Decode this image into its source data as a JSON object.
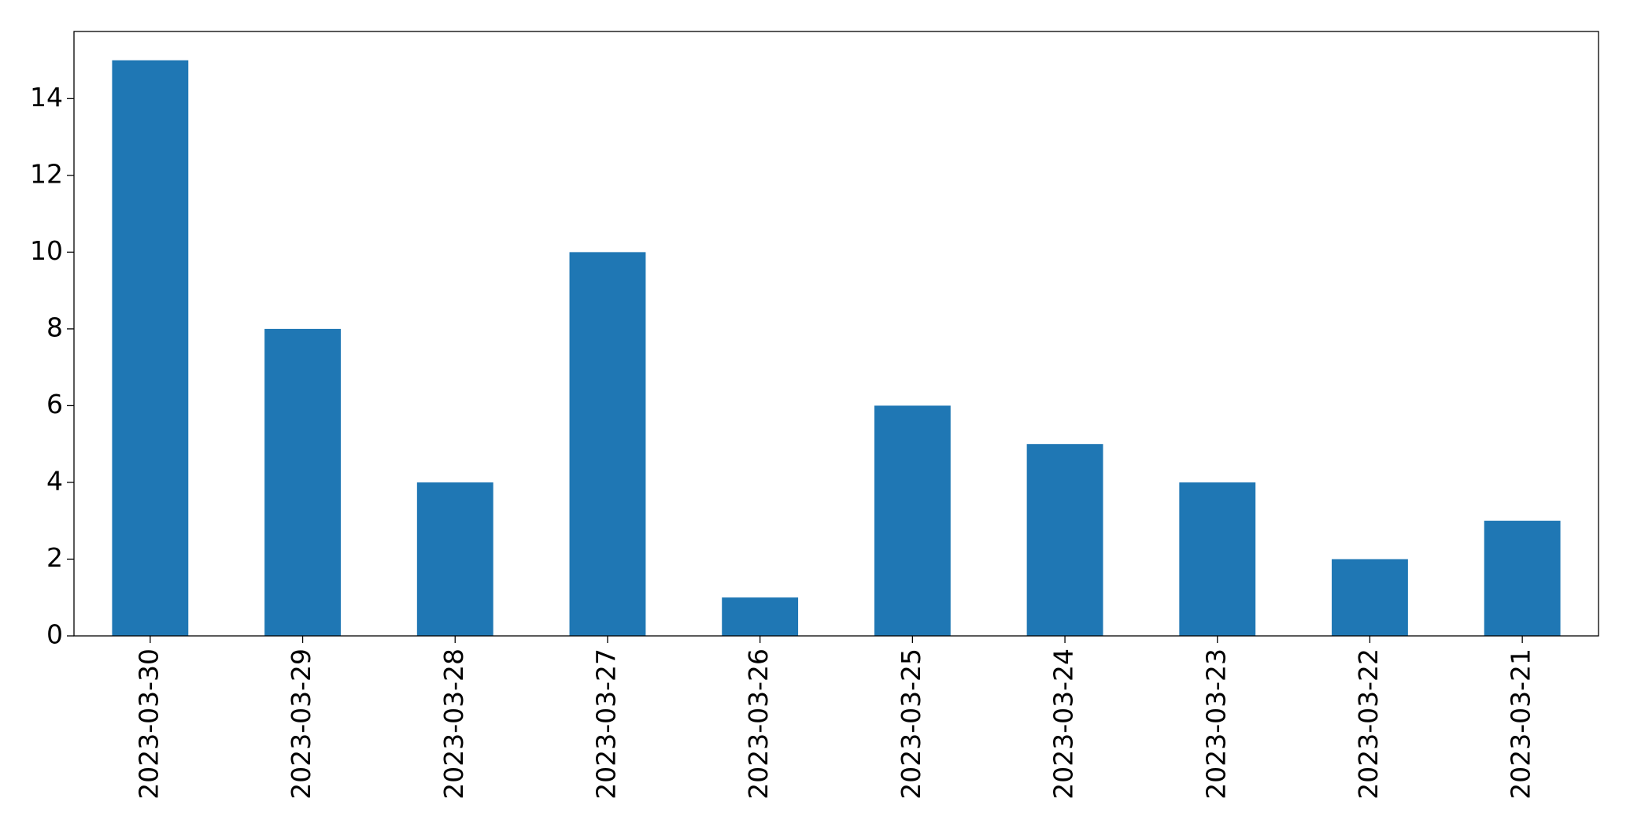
{
  "chart_data": {
    "type": "bar",
    "categories": [
      "2023-03-30",
      "2023-03-29",
      "2023-03-28",
      "2023-03-27",
      "2023-03-26",
      "2023-03-25",
      "2023-03-24",
      "2023-03-23",
      "2023-03-22",
      "2023-03-21"
    ],
    "values": [
      15,
      8,
      4,
      10,
      1,
      6,
      5,
      4,
      2,
      3
    ],
    "color": "#1f77b4",
    "ylim": [
      0,
      15.75
    ],
    "yticks": [
      0,
      2,
      4,
      6,
      8,
      10,
      12,
      14
    ],
    "grid": false
  }
}
